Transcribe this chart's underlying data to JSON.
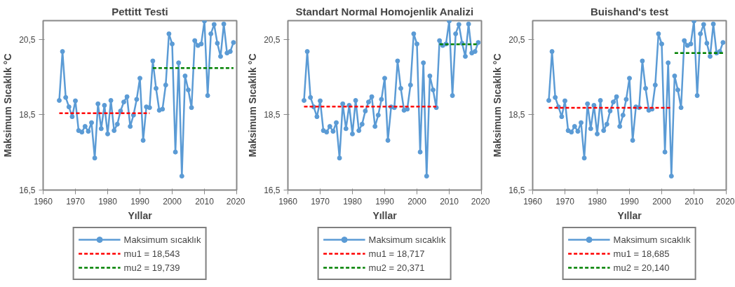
{
  "chart_data": [
    {
      "type": "line",
      "title": "Pettitt Testi",
      "xlabel": "Yıllar",
      "ylabel": "Maksimum Sıcaklık °C",
      "xlim": [
        1960,
        2020
      ],
      "xticks": [
        1960,
        1970,
        1980,
        1990,
        2000,
        2010,
        2020
      ],
      "ylim": [
        16.5,
        21
      ],
      "yticks": [
        {
          "value": 16.5,
          "label": "16,5"
        },
        {
          "value": 18.5,
          "label": "18,5"
        },
        {
          "value": 20.5,
          "label": "20,5"
        }
      ],
      "grid": false,
      "legend": "bottom",
      "series": [
        {
          "name": "Maksimum sıcaklık",
          "color": "#5b9bd5",
          "marker": "circle",
          "line_style": "solid",
          "x": [
            1965,
            1966,
            1967,
            1968,
            1969,
            1970,
            1971,
            1972,
            1973,
            1974,
            1975,
            1976,
            1977,
            1978,
            1979,
            1980,
            1981,
            1982,
            1983,
            1984,
            1985,
            1986,
            1987,
            1988,
            1989,
            1990,
            1991,
            1992,
            1993,
            1994,
            1995,
            1996,
            1997,
            1998,
            1999,
            2000,
            2001,
            2002,
            2003,
            2004,
            2005,
            2006,
            2007,
            2008,
            2009,
            2010,
            2011,
            2012,
            2013,
            2014,
            2015,
            2016,
            2017,
            2018,
            2019
          ],
          "values": [
            18.88,
            20.18,
            18.96,
            18.71,
            18.45,
            18.87,
            18.08,
            18.04,
            18.19,
            18.06,
            18.29,
            17.35,
            18.79,
            18.13,
            18.75,
            17.99,
            18.88,
            18.08,
            18.25,
            18.6,
            18.84,
            18.98,
            18.19,
            18.49,
            18.91,
            19.47,
            17.82,
            18.71,
            18.69,
            19.93,
            19.2,
            18.62,
            18.65,
            19.29,
            20.65,
            20.38,
            17.51,
            19.88,
            16.87,
            19.53,
            19.16,
            18.69,
            20.47,
            20.34,
            20.38,
            20.99,
            19.01,
            20.65,
            20.9,
            20.4,
            20.05,
            20.91,
            20.14,
            20.18,
            20.42
          ]
        },
        {
          "name": "mu1 = 18,543",
          "color": "#ff0000",
          "marker": "none",
          "line_style": "dashed",
          "x": [
            1965,
            1993
          ],
          "values": [
            18.543,
            18.543
          ]
        },
        {
          "name": "mu2 = 19,739",
          "color": "#008000",
          "marker": "none",
          "line_style": "dashed",
          "x": [
            1994,
            2019
          ],
          "values": [
            19.739,
            19.739
          ]
        }
      ]
    },
    {
      "type": "line",
      "title": "Standart Normal Homojenlik Analizi",
      "xlabel": "Yıllar",
      "ylabel": "Maksimum Sıcaklık °C",
      "xlim": [
        1960,
        2020
      ],
      "xticks": [
        1960,
        1970,
        1980,
        1990,
        2000,
        2010,
        2020
      ],
      "ylim": [
        16.5,
        21
      ],
      "yticks": [
        {
          "value": 16.5,
          "label": "16,5"
        },
        {
          "value": 18.5,
          "label": "18,5"
        },
        {
          "value": 20.5,
          "label": "20,5"
        }
      ],
      "grid": false,
      "legend": "bottom",
      "series": [
        {
          "name": "Maksimum sıcaklık",
          "color": "#5b9bd5",
          "marker": "circle",
          "line_style": "solid",
          "x": [
            1965,
            1966,
            1967,
            1968,
            1969,
            1970,
            1971,
            1972,
            1973,
            1974,
            1975,
            1976,
            1977,
            1978,
            1979,
            1980,
            1981,
            1982,
            1983,
            1984,
            1985,
            1986,
            1987,
            1988,
            1989,
            1990,
            1991,
            1992,
            1993,
            1994,
            1995,
            1996,
            1997,
            1998,
            1999,
            2000,
            2001,
            2002,
            2003,
            2004,
            2005,
            2006,
            2007,
            2008,
            2009,
            2010,
            2011,
            2012,
            2013,
            2014,
            2015,
            2016,
            2017,
            2018,
            2019
          ],
          "values": [
            18.88,
            20.18,
            18.96,
            18.71,
            18.45,
            18.87,
            18.08,
            18.04,
            18.19,
            18.06,
            18.29,
            17.35,
            18.79,
            18.13,
            18.75,
            17.99,
            18.88,
            18.08,
            18.25,
            18.6,
            18.84,
            18.98,
            18.19,
            18.49,
            18.91,
            19.47,
            17.82,
            18.71,
            18.69,
            19.93,
            19.2,
            18.62,
            18.65,
            19.29,
            20.65,
            20.38,
            17.51,
            19.88,
            16.87,
            19.53,
            19.16,
            18.69,
            20.47,
            20.34,
            20.38,
            20.99,
            19.01,
            20.65,
            20.9,
            20.4,
            20.05,
            20.91,
            20.14,
            20.18,
            20.42
          ]
        },
        {
          "name": "mu1 = 18,717",
          "color": "#ff0000",
          "marker": "none",
          "line_style": "dashed",
          "x": [
            1965,
            2006
          ],
          "values": [
            18.717,
            18.717
          ]
        },
        {
          "name": "mu2 = 20,371",
          "color": "#008000",
          "marker": "none",
          "line_style": "dashed",
          "x": [
            2007,
            2019
          ],
          "values": [
            20.371,
            20.371
          ]
        }
      ]
    },
    {
      "type": "line",
      "title": "Buishand's test",
      "xlabel": "Yıllar",
      "ylabel": "Maksimum Sıcaklık °C",
      "xlim": [
        1960,
        2020
      ],
      "xticks": [
        1960,
        1970,
        1980,
        1990,
        2000,
        2010,
        2020
      ],
      "ylim": [
        16.5,
        21
      ],
      "yticks": [
        {
          "value": 16.5,
          "label": "16,5"
        },
        {
          "value": 18.5,
          "label": "18,5"
        },
        {
          "value": 20.5,
          "label": "20,5"
        }
      ],
      "grid": false,
      "legend": "bottom",
      "series": [
        {
          "name": "Maksimum sıcaklık",
          "color": "#5b9bd5",
          "marker": "circle",
          "line_style": "solid",
          "x": [
            1965,
            1966,
            1967,
            1968,
            1969,
            1970,
            1971,
            1972,
            1973,
            1974,
            1975,
            1976,
            1977,
            1978,
            1979,
            1980,
            1981,
            1982,
            1983,
            1984,
            1985,
            1986,
            1987,
            1988,
            1989,
            1990,
            1991,
            1992,
            1993,
            1994,
            1995,
            1996,
            1997,
            1998,
            1999,
            2000,
            2001,
            2002,
            2003,
            2004,
            2005,
            2006,
            2007,
            2008,
            2009,
            2010,
            2011,
            2012,
            2013,
            2014,
            2015,
            2016,
            2017,
            2018,
            2019
          ],
          "values": [
            18.88,
            20.18,
            18.96,
            18.71,
            18.45,
            18.87,
            18.08,
            18.04,
            18.19,
            18.06,
            18.29,
            17.35,
            18.79,
            18.13,
            18.75,
            17.99,
            18.88,
            18.08,
            18.25,
            18.6,
            18.84,
            18.98,
            18.19,
            18.49,
            18.91,
            19.47,
            17.82,
            18.71,
            18.69,
            19.93,
            19.2,
            18.62,
            18.65,
            19.29,
            20.65,
            20.38,
            17.51,
            19.88,
            16.87,
            19.53,
            19.16,
            18.69,
            20.47,
            20.34,
            20.38,
            20.99,
            19.01,
            20.65,
            20.9,
            20.4,
            20.05,
            20.91,
            20.14,
            20.18,
            20.42
          ]
        },
        {
          "name": "mu1 = 18,685",
          "color": "#ff0000",
          "marker": "none",
          "line_style": "dashed",
          "x": [
            1965,
            2003
          ],
          "values": [
            18.685,
            18.685
          ]
        },
        {
          "name": "mu2 = 20,140",
          "color": "#008000",
          "marker": "none",
          "line_style": "dashed",
          "x": [
            2004,
            2019
          ],
          "values": [
            20.14,
            20.14
          ]
        }
      ]
    }
  ]
}
